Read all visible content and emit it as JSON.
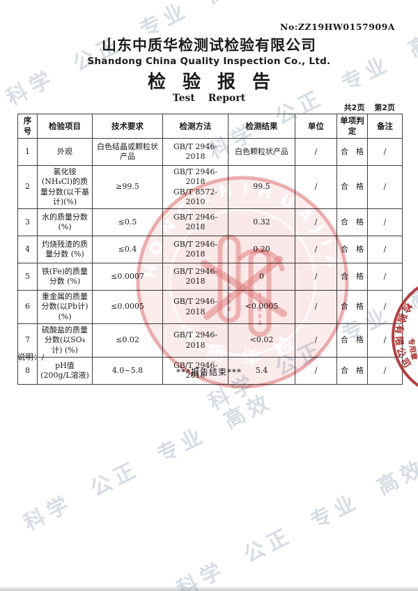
{
  "document": {
    "report_no": "No:ZZ19HW0157909A",
    "company_name_cn": "山东中质华检测试检验有限公司",
    "company_name_en": "Shandong China Quality Inspection Co., Ltd.",
    "title_cn": "检验报告",
    "title_en": "Test Report",
    "page_count": "共2页",
    "page_current": "第2页",
    "note": "说明：/",
    "report_end": "***报告结束***"
  },
  "watermark": {
    "text": "科学 公正 专业 高效",
    "color": "#d7dde4"
  },
  "center_seal": {
    "arc_text": "ZHONGZHIHUAJIAN",
    "bottom_text": "中质华检",
    "color": "#e08585"
  },
  "edge_seal": {
    "arc_text": "检验有限公司",
    "sub_text": "专用章",
    "color": "#a82b2b"
  },
  "table": {
    "headers": [
      "序号",
      "检验项目",
      "技术要求",
      "检测方法",
      "检测结果",
      "单位",
      "单项判定",
      "备注"
    ],
    "rows": [
      [
        "1",
        "外观",
        "白色结晶或颗粒状产品",
        "GB/T 2946-2018",
        "白色颗粒状产品",
        "/",
        "合　格",
        "/"
      ],
      [
        "2",
        "氯化铵(NH₄Cl)的质量分数(以干基计)(%)",
        "≥99.5",
        "GB/T 2946-2018\nGB/T 8572-2010",
        "99.5",
        "/",
        "合　格",
        "/"
      ],
      [
        "3",
        "水的质量分数 (%)",
        "≤0.5",
        "GB/T 2946-2018",
        "0.32",
        "/",
        "合　格",
        "/"
      ],
      [
        "4",
        "灼烧残渣的质量分数 (%)",
        "≤0.4",
        "GB/T 2946-2018",
        "0.20",
        "/",
        "合　格",
        "/"
      ],
      [
        "5",
        "铁(Fe)的质量分数 (%)",
        "≤0.0007",
        "GB/T 2946-2018",
        "0",
        "/",
        "合　格",
        "/"
      ],
      [
        "6",
        "重金属的质量分数(以Pb计) (%)",
        "≤0.0005",
        "GB/T 2946-2018",
        "<0.0005",
        "/",
        "合　格",
        "/"
      ],
      [
        "7",
        "硫酸盐的质量分数(以SO₄计) (%)",
        "≤0.02",
        "GB/T 2946-2018",
        "<0.02",
        "/",
        "合　格",
        "/"
      ],
      [
        "8",
        "pH值 (200g/L溶液)",
        "4.0~5.8",
        "GB/T 2946-2018",
        "5.4",
        "/",
        "合　格",
        "/"
      ]
    ]
  }
}
